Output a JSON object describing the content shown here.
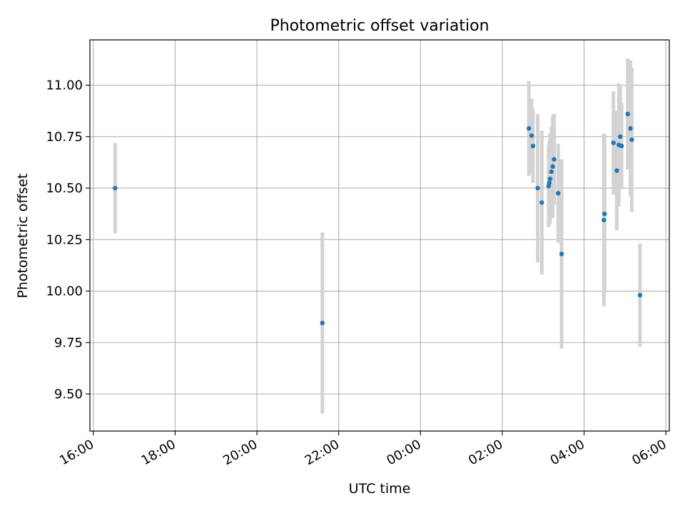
{
  "chart_data": {
    "type": "scatter",
    "title": "Photometric offset variation",
    "xlabel": "UTC time",
    "ylabel": "Photometric offset",
    "x_is_time": true,
    "xlim": [
      "15:55",
      "06:05"
    ],
    "ylim": [
      9.32,
      11.22
    ],
    "x_ticks": [
      "16:00",
      "18:00",
      "20:00",
      "22:00",
      "00:00",
      "02:00",
      "04:00",
      "06:00"
    ],
    "y_ticks": [
      "9.50",
      "9.75",
      "10.00",
      "10.25",
      "10.50",
      "10.75",
      "11.00"
    ],
    "grid": true,
    "point_color": "#1f77b4",
    "errorbar_color": "#d3d3d3",
    "points": [
      {
        "t": "16:32",
        "y": 10.5,
        "err": 0.22
      },
      {
        "t": "21:36",
        "y": 9.845,
        "err": 0.44
      },
      {
        "t": "02:39",
        "y": 10.79,
        "err": 0.23
      },
      {
        "t": "02:43",
        "y": 10.755,
        "err": 0.18
      },
      {
        "t": "02:45",
        "y": 10.705,
        "err": 0.18
      },
      {
        "t": "02:52",
        "y": 10.5,
        "err": 0.36
      },
      {
        "t": "02:58",
        "y": 10.43,
        "err": 0.35
      },
      {
        "t": "03:08",
        "y": 10.51,
        "err": 0.2
      },
      {
        "t": "03:09",
        "y": 10.525,
        "err": 0.2
      },
      {
        "t": "03:10",
        "y": 10.545,
        "err": 0.22
      },
      {
        "t": "03:12",
        "y": 10.58,
        "err": 0.22
      },
      {
        "t": "03:14",
        "y": 10.605,
        "err": 0.25
      },
      {
        "t": "03:16",
        "y": 10.64,
        "err": 0.22
      },
      {
        "t": "03:22",
        "y": 10.475,
        "err": 0.24
      },
      {
        "t": "03:27",
        "y": 10.18,
        "err": 0.46
      },
      {
        "t": "04:29",
        "y": 10.345,
        "err": 0.42
      },
      {
        "t": "04:30",
        "y": 10.375,
        "err": 0.39
      },
      {
        "t": "04:43",
        "y": 10.72,
        "err": 0.25
      },
      {
        "t": "04:48",
        "y": 10.585,
        "err": 0.29
      },
      {
        "t": "04:51",
        "y": 10.71,
        "err": 0.3
      },
      {
        "t": "04:53",
        "y": 10.75,
        "err": 0.25
      },
      {
        "t": "04:55",
        "y": 10.705,
        "err": 0.21
      },
      {
        "t": "05:04",
        "y": 10.86,
        "err": 0.27
      },
      {
        "t": "05:08",
        "y": 10.79,
        "err": 0.33
      },
      {
        "t": "05:10",
        "y": 10.735,
        "err": 0.35
      },
      {
        "t": "05:22",
        "y": 9.98,
        "err": 0.25
      }
    ]
  }
}
